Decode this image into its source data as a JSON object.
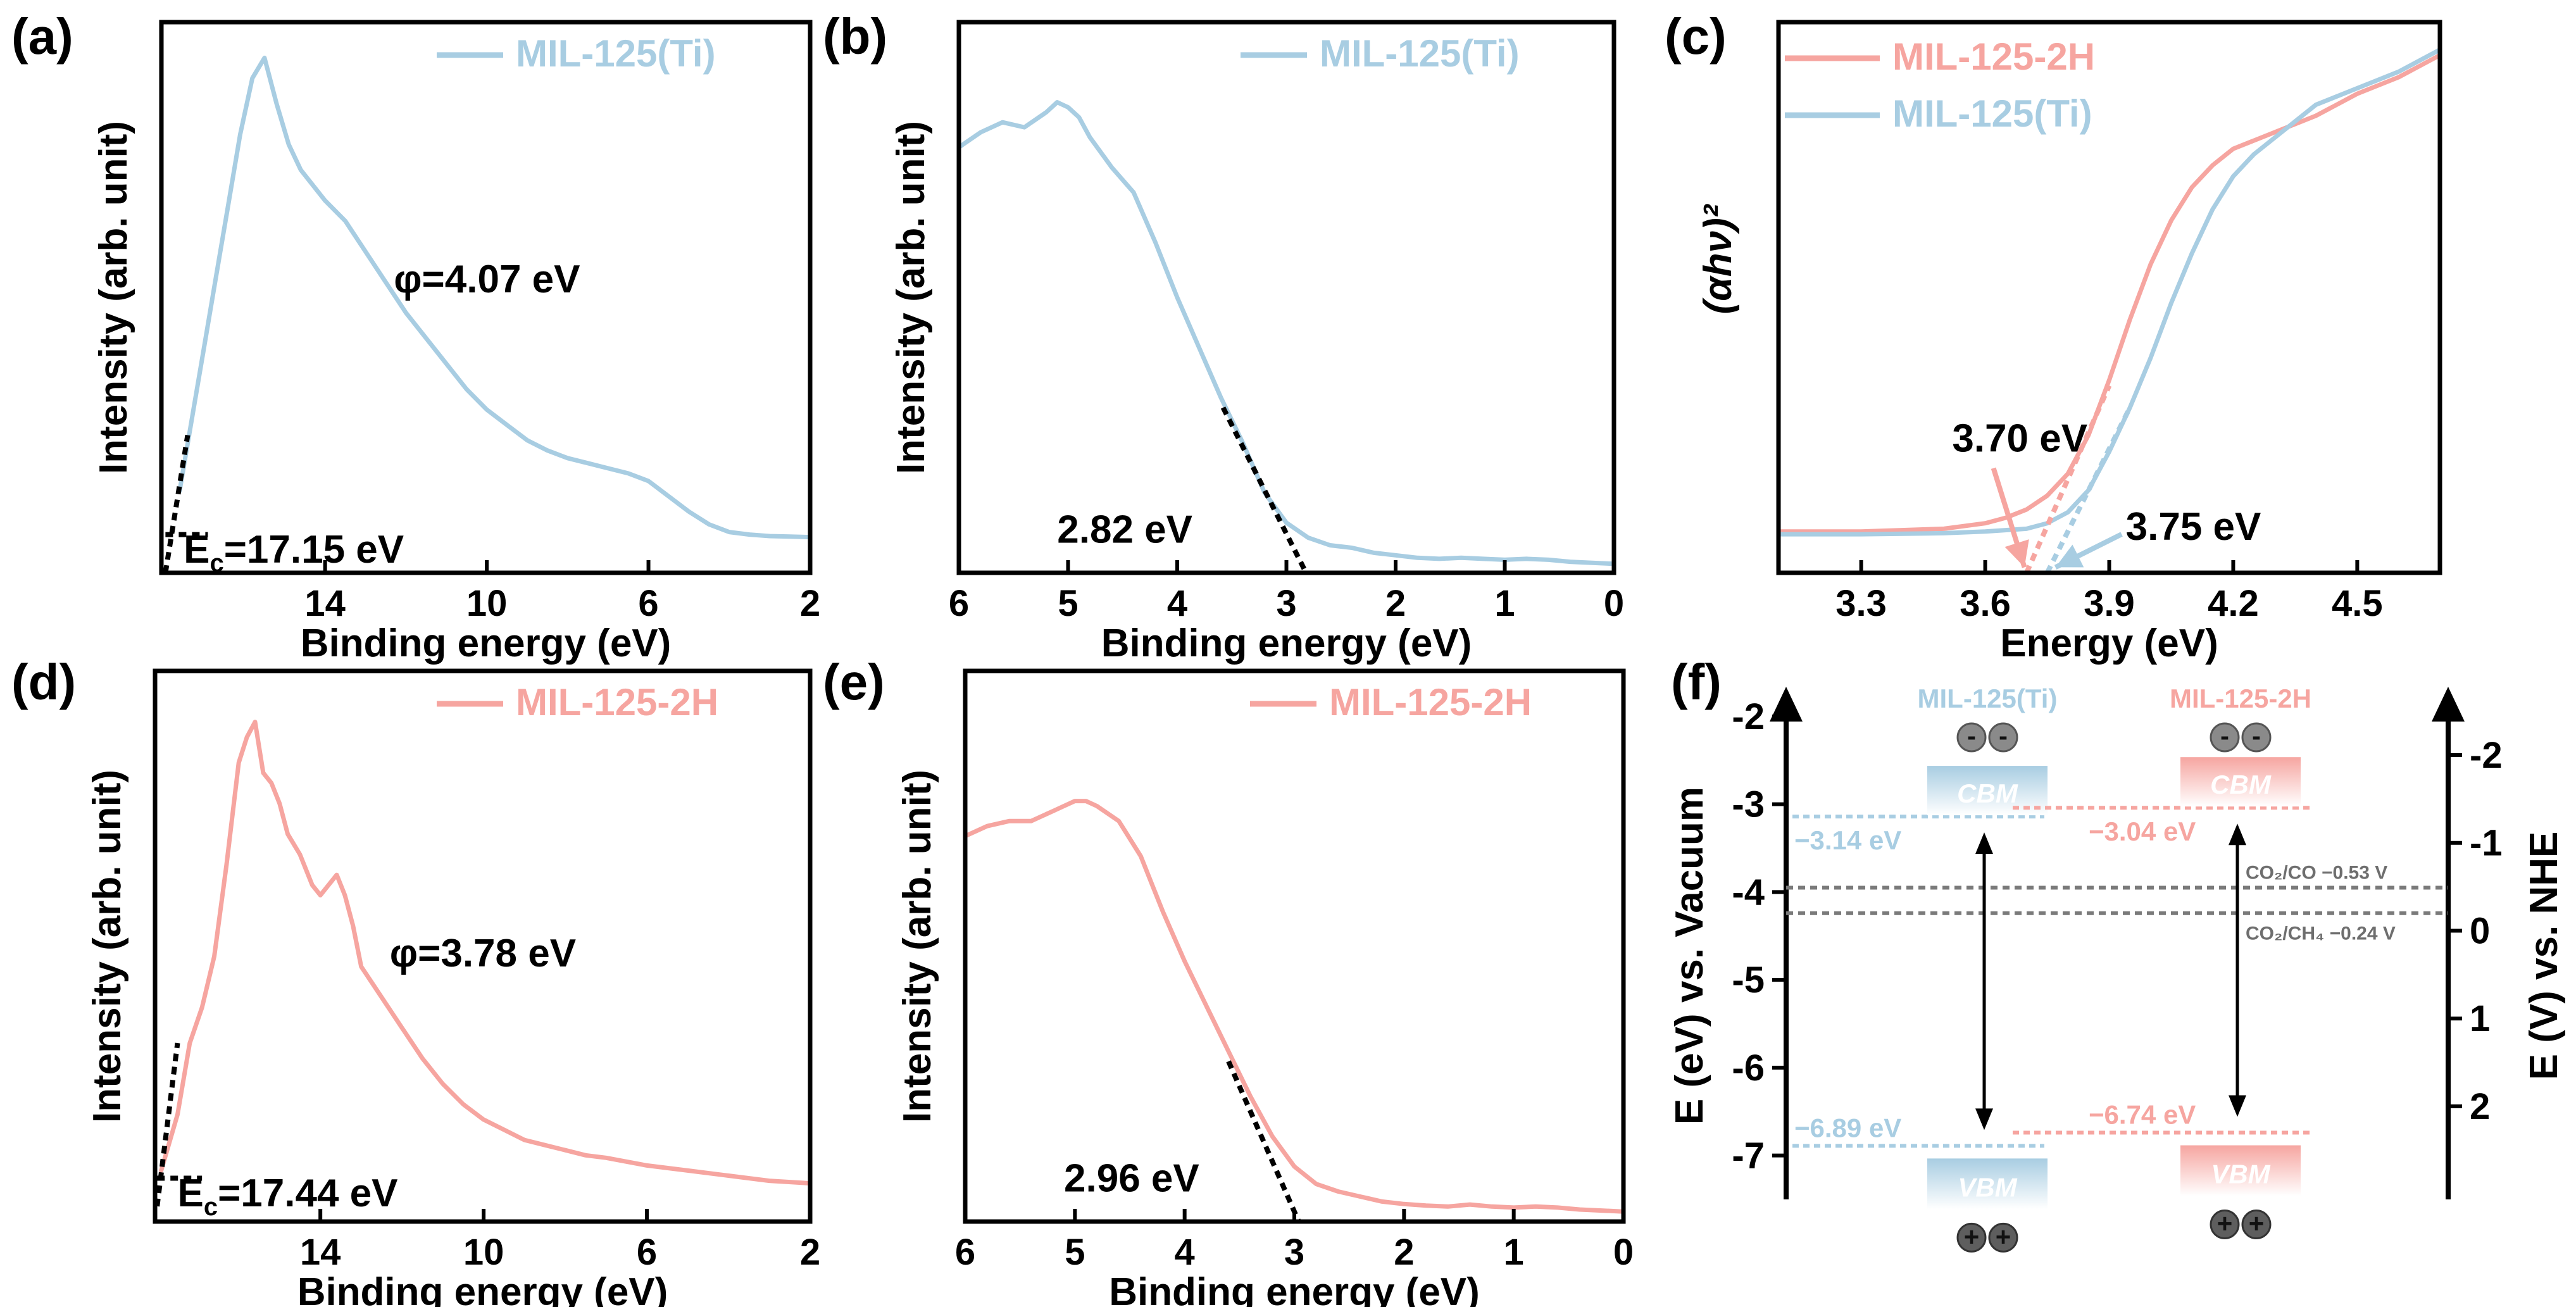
{
  "colors": {
    "blue": "#a8cde2",
    "pink": "#f6a5a0",
    "dark": "#000000",
    "grey": "#808080"
  },
  "chart_data": [
    {
      "id": "a",
      "panel_label": "(a)",
      "type": "line",
      "xlabel": "Binding energy (eV)",
      "ylabel": "Intensity (arb. unit)",
      "xlim": [
        18.05,
        2
      ],
      "ylim": [
        0,
        1.08
      ],
      "xticks": [
        14,
        10,
        6,
        2
      ],
      "xtick_labels": [
        "14",
        "10",
        "6",
        "2"
      ],
      "legend": {
        "label": "MIL-125(Ti)",
        "color": "#a8cde2",
        "position": "top-right"
      },
      "series": [
        {
          "name": "MIL-125(Ti)",
          "color": "#a8cde2",
          "x": [
            17.6,
            17.3,
            17.0,
            16.7,
            16.4,
            16.1,
            15.8,
            15.5,
            15.2,
            14.9,
            14.6,
            14.3,
            14.0,
            13.5,
            13.0,
            12.5,
            12.0,
            11.5,
            11.0,
            10.5,
            10.0,
            9.5,
            9.0,
            8.5,
            8.0,
            7.5,
            7.0,
            6.5,
            6.0,
            5.5,
            5.0,
            4.5,
            4.0,
            3.5,
            3.0,
            2.5,
            2.0
          ],
          "y": [
            0.16,
            0.3,
            0.44,
            0.58,
            0.72,
            0.86,
            0.97,
            1.01,
            0.92,
            0.84,
            0.79,
            0.76,
            0.73,
            0.69,
            0.63,
            0.57,
            0.51,
            0.46,
            0.41,
            0.36,
            0.32,
            0.29,
            0.26,
            0.24,
            0.225,
            0.215,
            0.205,
            0.195,
            0.18,
            0.15,
            0.12,
            0.095,
            0.08,
            0.075,
            0.072,
            0.071,
            0.07
          ]
        }
      ],
      "fit_lines": [
        {
          "x": [
            17.95,
            17.4
          ],
          "y": [
            0.0,
            0.27
          ]
        },
        {
          "x": [
            17.95,
            16.9
          ],
          "y": [
            0.075,
            0.075
          ]
        }
      ],
      "annotations": [
        {
          "text": "φ=4.07 eV",
          "x": 12.3,
          "y": 0.55
        },
        {
          "text_main": "E",
          "text_sub": "c",
          "text_rest": "=17.15 eV",
          "x": 17.5,
          "y": 0.02
        }
      ]
    },
    {
      "id": "b",
      "panel_label": "(b)",
      "type": "line",
      "xlabel": "Binding energy (eV)",
      "ylabel": "Intensity (arb. unit)",
      "xlim": [
        6,
        0
      ],
      "ylim": [
        0,
        1.1
      ],
      "xticks": [
        6,
        5,
        4,
        3,
        2,
        1,
        0
      ],
      "xtick_labels": [
        "6",
        "5",
        "4",
        "3",
        "2",
        "1",
        "0"
      ],
      "legend": {
        "label": "MIL-125(Ti)",
        "color": "#a8cde2",
        "position": "top-right"
      },
      "series": [
        {
          "name": "MIL-125(Ti)",
          "color": "#a8cde2",
          "x": [
            6.0,
            5.8,
            5.6,
            5.4,
            5.2,
            5.1,
            5.0,
            4.9,
            4.8,
            4.6,
            4.4,
            4.2,
            4.0,
            3.8,
            3.6,
            3.4,
            3.2,
            3.0,
            2.8,
            2.6,
            2.4,
            2.2,
            2.0,
            1.8,
            1.6,
            1.4,
            1.2,
            1.0,
            0.8,
            0.6,
            0.4,
            0.2,
            0.0
          ],
          "y": [
            0.85,
            0.88,
            0.9,
            0.89,
            0.92,
            0.94,
            0.93,
            0.91,
            0.87,
            0.81,
            0.76,
            0.66,
            0.55,
            0.45,
            0.35,
            0.26,
            0.16,
            0.1,
            0.07,
            0.055,
            0.05,
            0.04,
            0.035,
            0.03,
            0.028,
            0.03,
            0.028,
            0.026,
            0.028,
            0.026,
            0.022,
            0.02,
            0.018
          ]
        }
      ],
      "fit_lines": [
        {
          "x": [
            3.58,
            2.82
          ],
          "y": [
            0.33,
            0.0
          ]
        }
      ],
      "annotations": [
        {
          "text": "2.82 eV",
          "x": 5.1,
          "y": 0.06
        }
      ]
    },
    {
      "id": "c",
      "panel_label": "(c)",
      "type": "line",
      "xlabel": "Energy (eV)",
      "ylabel": "(αhν)²",
      "xlim": [
        3.1,
        4.7
      ],
      "ylim": [
        0,
        1.0
      ],
      "xticks": [
        3.3,
        3.6,
        3.9,
        4.2,
        4.5
      ],
      "xtick_labels": [
        "3.3",
        "3.6",
        "3.9",
        "4.2",
        "4.5"
      ],
      "legend_items": [
        {
          "label": "MIL-125-2H",
          "color": "#f6a5a0"
        },
        {
          "label": "MIL-125(Ti)",
          "color": "#a8cde2"
        }
      ],
      "series": [
        {
          "name": "MIL-125-2H",
          "color": "#f6a5a0",
          "x": [
            3.1,
            3.3,
            3.5,
            3.6,
            3.65,
            3.7,
            3.75,
            3.8,
            3.85,
            3.9,
            3.95,
            4.0,
            4.05,
            4.1,
            4.15,
            4.2,
            4.3,
            4.4,
            4.5,
            4.6,
            4.7
          ],
          "y": [
            0.075,
            0.075,
            0.08,
            0.09,
            0.1,
            0.115,
            0.14,
            0.18,
            0.25,
            0.35,
            0.46,
            0.56,
            0.64,
            0.7,
            0.74,
            0.77,
            0.8,
            0.83,
            0.87,
            0.9,
            0.94
          ]
        },
        {
          "name": "MIL-125(Ti)",
          "color": "#a8cde2",
          "x": [
            3.1,
            3.3,
            3.5,
            3.6,
            3.7,
            3.75,
            3.8,
            3.85,
            3.9,
            3.95,
            4.0,
            4.05,
            4.1,
            4.15,
            4.2,
            4.25,
            4.3,
            4.35,
            4.4,
            4.5,
            4.6,
            4.7
          ],
          "y": [
            0.07,
            0.07,
            0.072,
            0.075,
            0.08,
            0.09,
            0.11,
            0.15,
            0.22,
            0.3,
            0.39,
            0.49,
            0.58,
            0.66,
            0.72,
            0.76,
            0.79,
            0.82,
            0.85,
            0.88,
            0.91,
            0.95
          ]
        }
      ],
      "fit_lines": [
        {
          "x": [
            3.7,
            3.9
          ],
          "y": [
            0.0,
            0.34
          ],
          "color": "#f6a5a0"
        },
        {
          "x": [
            3.75,
            3.95
          ],
          "y": [
            0.0,
            0.3
          ],
          "color": "#a8cde2"
        }
      ],
      "annotations": [
        {
          "text": "3.70 eV",
          "x": 3.52,
          "y": 0.22,
          "color": "#f6a5a0"
        },
        {
          "text": "3.75 eV",
          "x": 3.94,
          "y": 0.06,
          "color": "#a8cde2"
        }
      ]
    },
    {
      "id": "d",
      "panel_label": "(d)",
      "type": "line",
      "xlabel": "Binding energy (eV)",
      "ylabel": "Intensity (arb. unit)",
      "xlim": [
        18.05,
        2
      ],
      "ylim": [
        0,
        1.08
      ],
      "xticks": [
        14,
        10,
        6,
        2
      ],
      "xtick_labels": [
        "14",
        "10",
        "6",
        "2"
      ],
      "legend": {
        "label": "MIL-125-2H",
        "color": "#f6a5a0",
        "position": "top-right"
      },
      "series": [
        {
          "name": "MIL-125-2H",
          "color": "#f6a5a0",
          "x": [
            17.9,
            17.5,
            17.2,
            16.9,
            16.6,
            16.3,
            16.0,
            15.8,
            15.6,
            15.4,
            15.2,
            15.0,
            14.8,
            14.5,
            14.2,
            14.0,
            13.8,
            13.6,
            13.4,
            13.2,
            13.0,
            12.5,
            12.0,
            11.5,
            11.0,
            10.5,
            10.0,
            9.5,
            9.0,
            8.5,
            8.0,
            7.5,
            7.0,
            6.0,
            5.0,
            4.0,
            3.0,
            2.0
          ],
          "y": [
            0.1,
            0.21,
            0.35,
            0.42,
            0.52,
            0.7,
            0.9,
            0.95,
            0.98,
            0.88,
            0.86,
            0.82,
            0.76,
            0.72,
            0.66,
            0.64,
            0.66,
            0.68,
            0.64,
            0.58,
            0.5,
            0.44,
            0.38,
            0.32,
            0.27,
            0.23,
            0.2,
            0.18,
            0.16,
            0.15,
            0.14,
            0.13,
            0.125,
            0.11,
            0.1,
            0.09,
            0.08,
            0.075
          ]
        }
      ],
      "fit_lines": [
        {
          "x": [
            18.0,
            17.5
          ],
          "y": [
            0.03,
            0.35
          ]
        },
        {
          "x": [
            18.0,
            16.9
          ],
          "y": [
            0.085,
            0.085
          ]
        }
      ],
      "annotations": [
        {
          "text": "φ=3.78 eV",
          "x": 12.3,
          "y": 0.5
        },
        {
          "text_main": "E",
          "text_sub": "c",
          "text_rest": "=17.44 eV",
          "x": 17.5,
          "y": 0.03
        }
      ]
    },
    {
      "id": "e",
      "panel_label": "(e)",
      "type": "line",
      "xlabel": "Binding energy (eV)",
      "ylabel": "Intensity (arb. unit)",
      "xlim": [
        6,
        0
      ],
      "ylim": [
        0,
        1.1
      ],
      "xticks": [
        6,
        5,
        4,
        3,
        2,
        1,
        0
      ],
      "xtick_labels": [
        "6",
        "5",
        "4",
        "3",
        "2",
        "1",
        "0"
      ],
      "legend": {
        "label": "MIL-125-2H",
        "color": "#f6a5a0",
        "position": "top-right"
      },
      "series": [
        {
          "name": "MIL-125-2H",
          "color": "#f6a5a0",
          "x": [
            6.0,
            5.8,
            5.6,
            5.4,
            5.2,
            5.1,
            5.0,
            4.9,
            4.8,
            4.6,
            4.4,
            4.2,
            4.0,
            3.8,
            3.6,
            3.4,
            3.2,
            3.0,
            2.8,
            2.6,
            2.4,
            2.2,
            2.0,
            1.8,
            1.6,
            1.4,
            1.2,
            1.0,
            0.8,
            0.6,
            0.4,
            0.2,
            0.0
          ],
          "y": [
            0.77,
            0.79,
            0.8,
            0.8,
            0.82,
            0.83,
            0.84,
            0.84,
            0.83,
            0.8,
            0.73,
            0.62,
            0.52,
            0.43,
            0.34,
            0.25,
            0.17,
            0.11,
            0.075,
            0.06,
            0.05,
            0.04,
            0.035,
            0.032,
            0.03,
            0.034,
            0.03,
            0.028,
            0.03,
            0.028,
            0.024,
            0.022,
            0.02
          ]
        }
      ],
      "fit_lines": [
        {
          "x": [
            3.6,
            2.96
          ],
          "y": [
            0.32,
            0.0
          ]
        }
      ],
      "annotations": [
        {
          "text": "2.96 eV",
          "x": 5.1,
          "y": 0.06
        }
      ]
    },
    {
      "id": "f",
      "panel_label": "(f)",
      "type": "diagram",
      "left_axis_label": "E (eV) vs. Vacuum",
      "right_axis_label": "E (V) vs. NHE",
      "left_range": [
        -7.5,
        -1.95
      ],
      "left_ticks": [
        -2,
        -3,
        -4,
        -5,
        -6,
        -7
      ],
      "left_tick_labels": [
        "-2",
        "-3",
        "-4",
        "-5",
        "-6",
        "-7"
      ],
      "right_ticks": [
        -2,
        -1,
        0,
        1,
        2
      ],
      "right_tick_labels": [
        "-2",
        "-1",
        "0",
        "1",
        "2"
      ],
      "nhe_offset": -4.44,
      "materials": [
        {
          "name": "MIL-125(Ti)",
          "color": "#a8cde2",
          "cbm": -3.14,
          "vbm": -6.89,
          "cbm_label": "−3.14 eV",
          "vbm_label": "−6.89 eV",
          "cbm_text": "CBM",
          "vbm_text": "VBM",
          "electron_sign": "-",
          "hole_sign": "+"
        },
        {
          "name": "MIL-125-2H",
          "color": "#f6a5a0",
          "cbm": -3.04,
          "vbm": -6.74,
          "cbm_label": "−3.04 eV",
          "vbm_label": "−6.74 eV",
          "cbm_text": "CBM",
          "vbm_text": "VBM",
          "electron_sign": "-",
          "hole_sign": "+"
        }
      ],
      "redox": [
        {
          "label": "CO₂/CO −0.53 V",
          "vac": -3.95
        },
        {
          "label": "CO₂/CH₄ −0.24 V",
          "vac": -4.24
        }
      ]
    }
  ]
}
